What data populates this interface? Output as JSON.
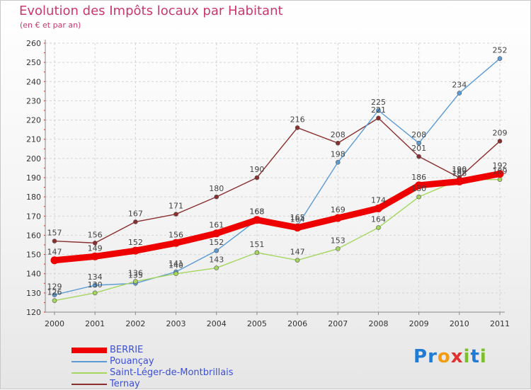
{
  "chart_data": {
    "type": "line",
    "title": "Evolution des Impôts locaux par Habitant",
    "subtitle": "(en € et par an)",
    "xlabel": "",
    "ylabel": "",
    "categories": [
      "2000",
      "2001",
      "2002",
      "2003",
      "2004",
      "2005",
      "2006",
      "2007",
      "2008",
      "2009",
      "2010",
      "2011"
    ],
    "y_ticks": [
      "120",
      "130",
      "140",
      "150",
      "160",
      "170",
      "180",
      "190",
      "200",
      "210",
      "220",
      "230",
      "240",
      "250",
      "260"
    ],
    "ylim": [
      120,
      260
    ],
    "grid": true,
    "legend_position": "bottom-left",
    "series": [
      {
        "name": "BERRIE",
        "color": "#ee0000",
        "values": [
          147,
          149,
          152,
          156,
          161,
          168,
          164,
          169,
          174,
          186,
          188,
          192
        ]
      },
      {
        "name": "Pouançay",
        "color": "#5b9bd5",
        "values": [
          129,
          134,
          135,
          141,
          152,
          168,
          165,
          198,
          225,
          208,
          234,
          252
        ]
      },
      {
        "name": "Saint-Léger-de-Montbrillais",
        "color": "#a4d65e",
        "values": [
          126,
          130,
          136,
          140,
          143,
          151,
          147,
          153,
          164,
          180,
          189,
          189
        ]
      },
      {
        "name": "Ternay",
        "color": "#8b2e2e",
        "values": [
          157,
          156,
          167,
          171,
          180,
          190,
          216,
          208,
          221,
          201,
          190,
          209
        ]
      }
    ]
  },
  "branding": {
    "logo_letters": [
      "P",
      "r",
      "o",
      "x",
      "i",
      "t",
      "i"
    ],
    "logo_colors": [
      "#1f7bd4",
      "#1f7bd4",
      "#f39c12",
      "#e03030",
      "#7bbf2a",
      "#1f7bd4",
      "#7bbf2a"
    ]
  }
}
